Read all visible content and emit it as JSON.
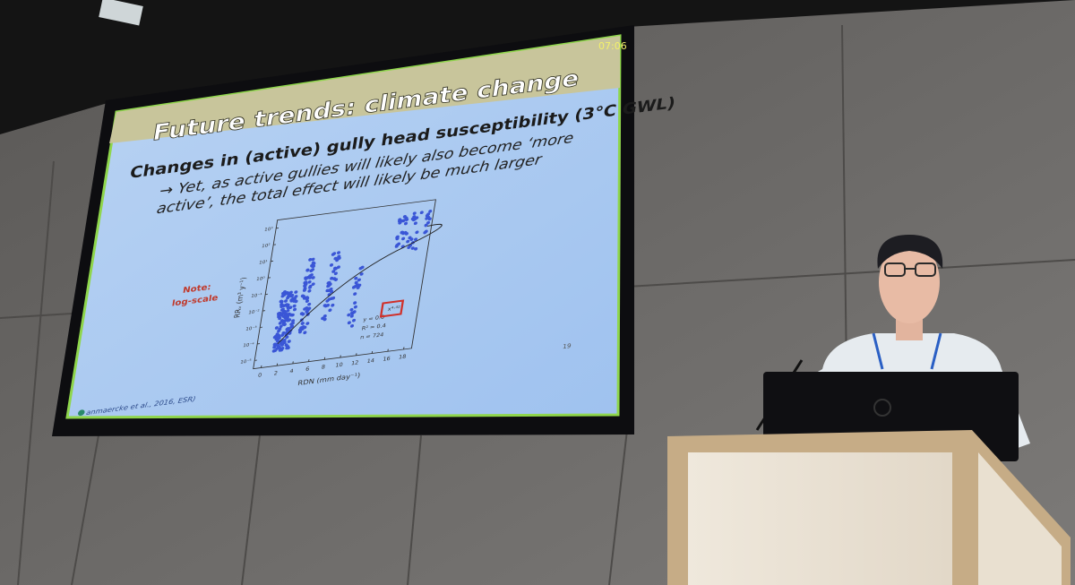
{
  "screen": {
    "timer": "07:06",
    "title": "Future trends: climate change",
    "subtitle": "Changes in (active) gully head susceptibility (3°C GWL)",
    "bullet_line_1": "→ Yet, as active gullies will likely also become ‘more",
    "bullet_line_2": "active’, the total effect will likely be much larger",
    "note_line_1": "Note:",
    "note_line_2": "log-scale",
    "plot": {
      "x_label": "RDN (mm day⁻¹)",
      "y_label": "RRᵥ (m³ y⁻¹)",
      "x_ticks": [
        0,
        2,
        4,
        6,
        8,
        10,
        12,
        14,
        16,
        18
      ],
      "y_ticks": [
        "10³",
        "10²",
        "10¹",
        "10⁰",
        "10⁻¹",
        "10⁻²",
        "10⁻³",
        "10⁻⁴",
        "10⁻⁵"
      ],
      "equation": "y = 0.0",
      "exponent": "x⁴·⁴²",
      "r_squared": "R² = 0.4",
      "n": "n = 724"
    },
    "citation": "anmaercke et al., 2016, ESR)",
    "page": "19"
  }
}
